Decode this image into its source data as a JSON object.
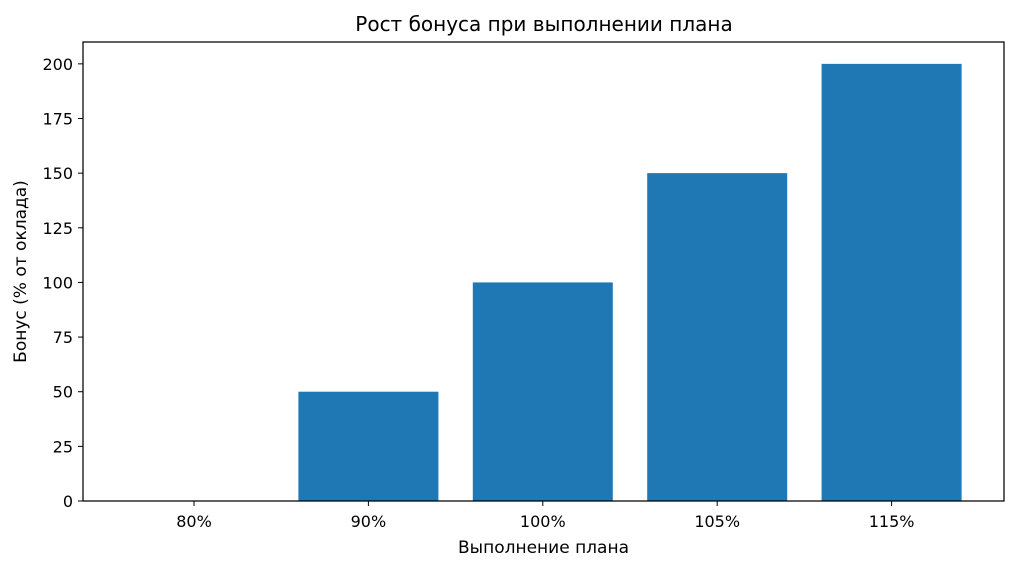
{
  "chart_data": {
    "type": "bar",
    "title": "Рост бонуса при выполнении плана",
    "xlabel": "Выполнение плана",
    "ylabel": "Бонус (% от оклада)",
    "categories": [
      "80%",
      "90%",
      "100%",
      "105%",
      "115%"
    ],
    "values": [
      0,
      50,
      100,
      150,
      200
    ],
    "ylim": [
      0,
      210
    ],
    "yticks": [
      0,
      25,
      50,
      75,
      100,
      125,
      150,
      175,
      200
    ],
    "bar_color": "#1f77b4",
    "grid": false,
    "legend": "none"
  }
}
